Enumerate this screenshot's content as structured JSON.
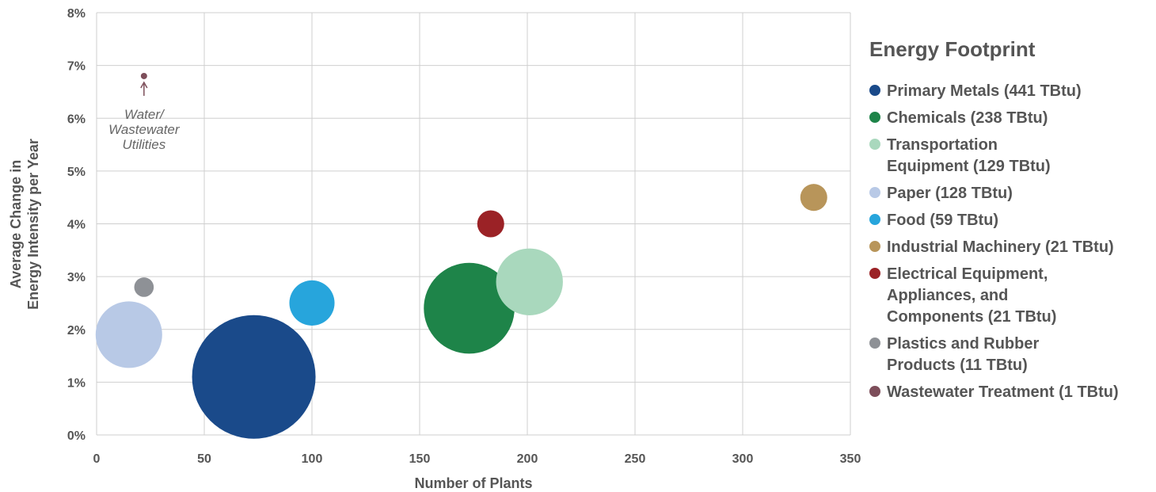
{
  "chart_data": {
    "type": "scatter",
    "subtype": "bubble",
    "xlabel": "Number of Plants",
    "ylabel_lines": [
      "Average Change in",
      "Energy Intensity per Year"
    ],
    "xlim": [
      0,
      350
    ],
    "ylim": [
      0,
      8
    ],
    "x_ticks": [
      "0",
      "50",
      "100",
      "150",
      "200",
      "250",
      "300",
      "350"
    ],
    "y_ticks": [
      "0%",
      "1%",
      "2%",
      "3%",
      "4%",
      "5%",
      "6%",
      "7%",
      "8%"
    ],
    "grid": true,
    "legend_title": "Energy Footprint",
    "legend_placement": "right",
    "series": [
      {
        "name": "Primary Metals (441 TBtu)",
        "legend_lines": [
          "Primary Metals (441 TBtu)"
        ],
        "x": 73,
        "y": 1.1,
        "energy": 441,
        "color": "#1a4a8a"
      },
      {
        "name": "Chemicals (238 TBtu)",
        "legend_lines": [
          "Chemicals (238 TBtu)"
        ],
        "x": 173,
        "y": 2.4,
        "energy": 238,
        "color": "#1e8449"
      },
      {
        "name": "Transportation Equipment (129 TBtu)",
        "legend_lines": [
          "Transportation",
          "Equipment (129 TBtu)"
        ],
        "x": 201,
        "y": 2.9,
        "energy": 129,
        "color": "#a9d8bd"
      },
      {
        "name": "Paper (128 TBtu)",
        "legend_lines": [
          "Paper (128 TBtu)"
        ],
        "x": 15,
        "y": 1.9,
        "energy": 128,
        "color": "#b8c9e6"
      },
      {
        "name": "Food (59 TBtu)",
        "legend_lines": [
          "Food (59 TBtu)"
        ],
        "x": 100,
        "y": 2.5,
        "energy": 59,
        "color": "#27a5dc"
      },
      {
        "name": "Industrial Machinery (21 TBtu)",
        "legend_lines": [
          "Industrial Machinery (21 TBtu)"
        ],
        "x": 333,
        "y": 4.5,
        "energy": 21,
        "color": "#b8955a"
      },
      {
        "name": "Electrical Equipment, Appliances, and Components (21 TBtu)",
        "legend_lines": [
          "Electrical Equipment,",
          "Appliances, and",
          "Components (21 TBtu)"
        ],
        "x": 183,
        "y": 4.0,
        "energy": 21,
        "color": "#9b2226"
      },
      {
        "name": "Plastics and Rubber Products (11 TBtu)",
        "legend_lines": [
          "Plastics and Rubber",
          "Products (11 TBtu)"
        ],
        "x": 22,
        "y": 2.8,
        "energy": 11,
        "color": "#8e9196"
      },
      {
        "name": "Wastewater Treatment (1 TBtu)",
        "legend_lines": [
          "Wastewater Treatment (1 TBtu)"
        ],
        "x": 22,
        "y": 6.8,
        "energy": 1,
        "color": "#7d4e5a"
      }
    ],
    "annotation": {
      "lines": [
        "Water/",
        "Wastewater",
        "Utilities"
      ],
      "x": 22,
      "y": 6.8
    }
  }
}
